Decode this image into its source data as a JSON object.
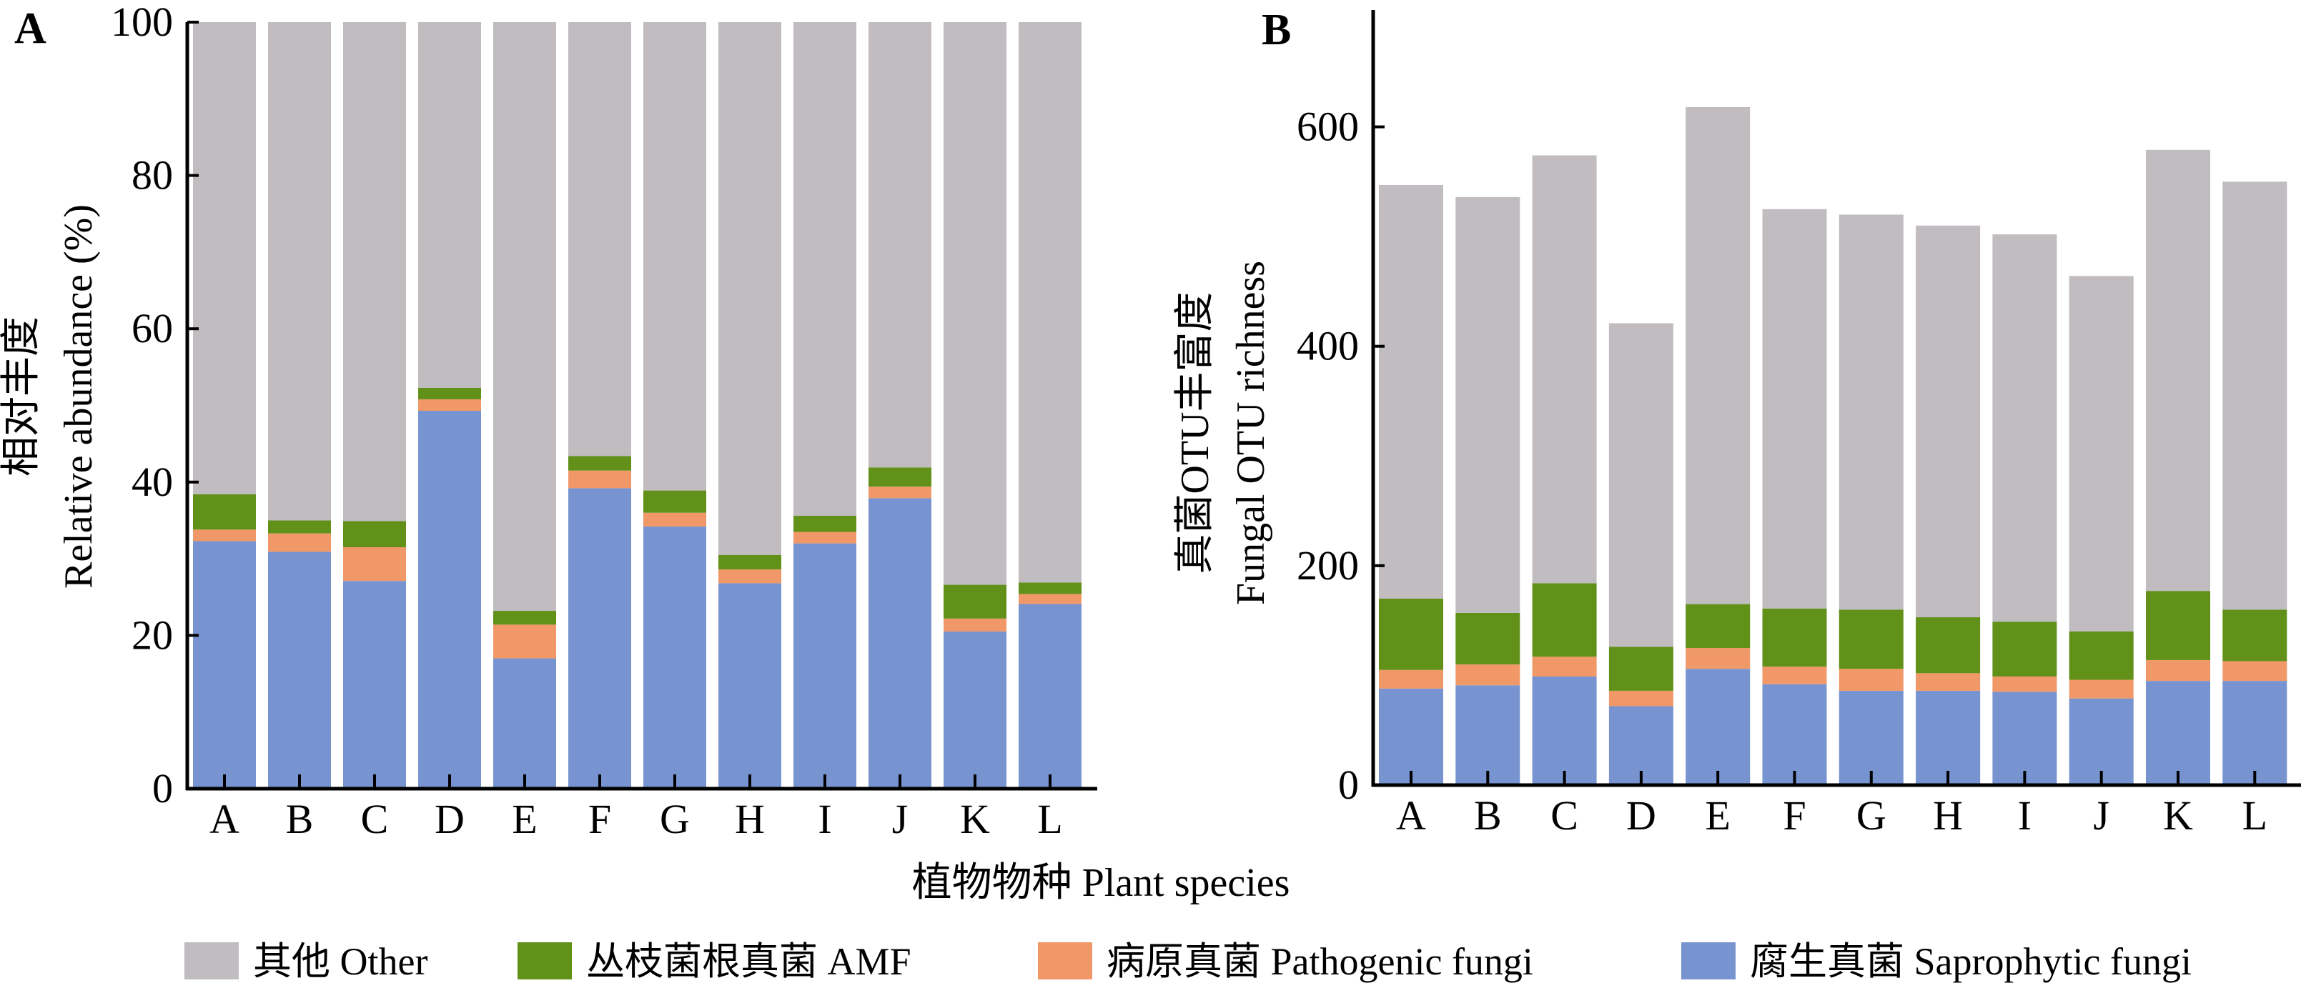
{
  "colors": {
    "other": "#c0bcc0",
    "amf": "#619119",
    "pathogenic": "#f09868",
    "saprophytic": "#7894d0"
  },
  "x_axis_title": "植物物种 Plant species",
  "legend": [
    {
      "key": "other",
      "label": "其他 Other"
    },
    {
      "key": "amf",
      "label": "丛枝菌根真菌 AMF"
    },
    {
      "key": "pathogenic",
      "label": "病原真菌 Pathogenic fungi"
    },
    {
      "key": "saprophytic",
      "label": "腐生真菌 Saprophytic fungi"
    }
  ],
  "chart_data": [
    {
      "panel": "A",
      "type": "bar",
      "stacked": true,
      "ylabel_cn": "相对丰度",
      "ylabel": "Relative abundance (%)",
      "xlabel": "植物物种 Plant species",
      "ylim": [
        0,
        100
      ],
      "yticks": [
        0,
        20,
        40,
        60,
        80,
        100
      ],
      "categories": [
        "A",
        "B",
        "C",
        "D",
        "E",
        "F",
        "G",
        "H",
        "I",
        "J",
        "K",
        "L"
      ],
      "series": [
        {
          "key": "saprophytic",
          "name": "腐生真菌 Saprophytic fungi",
          "values": [
            32.3,
            30.9,
            27.1,
            49.3,
            17.0,
            39.2,
            34.2,
            26.8,
            32.0,
            37.9,
            20.5,
            24.1
          ]
        },
        {
          "key": "pathogenic",
          "name": "病原真菌 Pathogenic fungi",
          "values": [
            1.5,
            2.4,
            4.4,
            1.5,
            4.4,
            2.3,
            1.8,
            1.8,
            1.5,
            1.5,
            1.7,
            1.3
          ]
        },
        {
          "key": "amf",
          "name": "丛枝菌根真菌 AMF",
          "values": [
            4.6,
            1.7,
            3.4,
            1.5,
            1.8,
            1.9,
            2.9,
            1.9,
            2.1,
            2.5,
            4.4,
            1.5
          ]
        },
        {
          "key": "other",
          "name": "其他 Other",
          "values": [
            61.6,
            65.0,
            65.1,
            47.7,
            76.8,
            56.6,
            61.1,
            69.5,
            64.4,
            58.1,
            73.4,
            73.1
          ]
        }
      ]
    },
    {
      "panel": "B",
      "type": "bar",
      "stacked": true,
      "ylabel_cn": "真菌OTU丰富度",
      "ylabel": "Fungal OTU richness",
      "xlabel": "植物物种 Plant species",
      "ylim": [
        0,
        700
      ],
      "yticks": [
        0,
        200,
        400,
        600
      ],
      "categories": [
        "A",
        "B",
        "C",
        "D",
        "E",
        "F",
        "G",
        "H",
        "I",
        "J",
        "K",
        "L"
      ],
      "series": [
        {
          "key": "saprophytic",
          "name": "腐生真菌 Saprophytic fungi",
          "values": [
            88,
            91,
            99,
            72,
            106,
            92,
            86,
            86,
            85,
            79,
            95,
            95
          ]
        },
        {
          "key": "pathogenic",
          "name": "病原真菌 Pathogenic fungi",
          "values": [
            17,
            19,
            18,
            14,
            19,
            16,
            20,
            16,
            14,
            17,
            19,
            18
          ]
        },
        {
          "key": "amf",
          "name": "丛枝菌根真菌 AMF",
          "values": [
            65,
            47,
            67,
            40,
            40,
            53,
            54,
            51,
            50,
            44,
            63,
            47
          ]
        },
        {
          "key": "other",
          "name": "其他 Other",
          "values": [
            377,
            379,
            390,
            295,
            453,
            364,
            360,
            357,
            353,
            324,
            402,
            390
          ]
        }
      ]
    }
  ]
}
